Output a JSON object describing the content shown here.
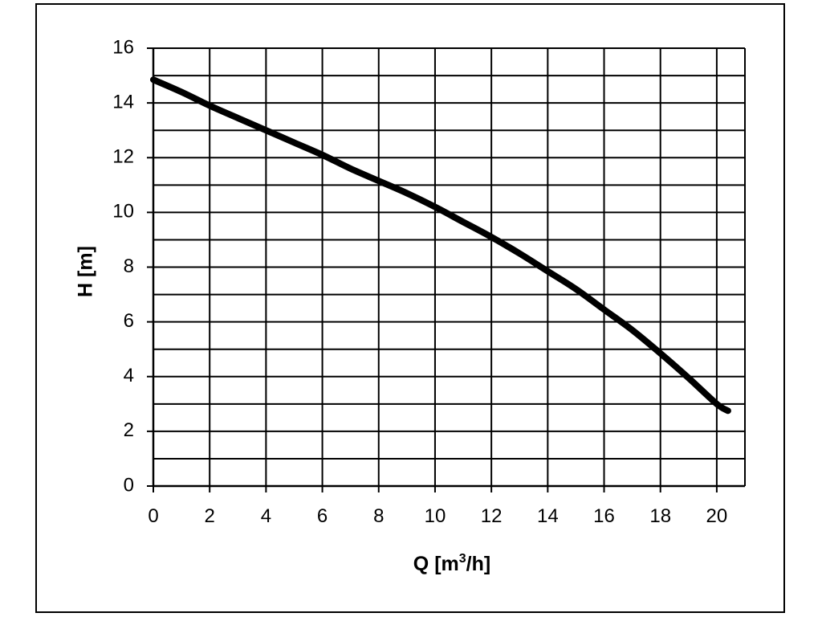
{
  "chart_data": {
    "type": "line",
    "title": "",
    "xlabel": "Q [m",
    "xlabel_sup": "3",
    "xlabel_tail": "/h]",
    "ylabel": "H [m]",
    "xlim": [
      0,
      21
    ],
    "ylim": [
      0,
      16
    ],
    "x_ticks": [
      0,
      2,
      4,
      6,
      8,
      10,
      12,
      14,
      16,
      18,
      20
    ],
    "x_tick_labels": [
      "0",
      "2",
      "4",
      "6",
      "8",
      "10",
      "12",
      "14",
      "16",
      "18",
      "20"
    ],
    "y_ticks": [
      0,
      2,
      4,
      6,
      8,
      10,
      12,
      14,
      16
    ],
    "y_tick_labels": [
      "0",
      "2",
      "4",
      "6",
      "8",
      "10",
      "12",
      "14",
      "16"
    ],
    "x_gridlines": [
      0,
      2,
      4,
      6,
      8,
      10,
      12,
      14,
      16,
      18,
      20,
      21
    ],
    "y_gridlines": [
      0,
      1,
      2,
      3,
      4,
      5,
      6,
      7,
      8,
      9,
      10,
      11,
      12,
      13,
      14,
      15,
      16
    ],
    "grid": true,
    "legend": "none",
    "series": [
      {
        "color": "#000000",
        "x": [
          0,
          1,
          2,
          3,
          4,
          5,
          6,
          7,
          8,
          9,
          10,
          11,
          12,
          13,
          14,
          15,
          16,
          17,
          18,
          19,
          20,
          20.4
        ],
        "y": [
          14.85,
          14.4,
          13.9,
          13.45,
          13.0,
          12.55,
          12.1,
          11.6,
          11.15,
          10.7,
          10.2,
          9.65,
          9.1,
          8.5,
          7.85,
          7.2,
          6.45,
          5.7,
          4.85,
          3.95,
          3.0,
          2.75
        ]
      }
    ]
  }
}
